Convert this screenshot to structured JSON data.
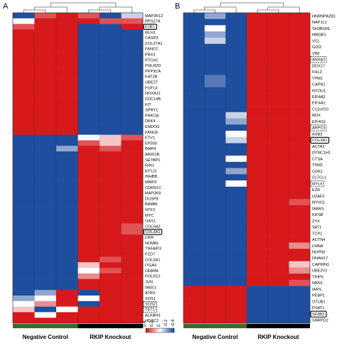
{
  "colors": {
    "high": "#d7191c",
    "mid": "#ffffff",
    "low": "#1f4e9e",
    "group_control": "#3d6b2a",
    "group_knockout": "#000000"
  },
  "legend": {
    "ticks": [
      "-0.4",
      "-0.2",
      "0",
      "0.2",
      "0.4"
    ]
  },
  "chart_data": [
    {
      "type": "heatmap",
      "panel": "A",
      "groups": [
        "Negative Control",
        "RKIP Knockout"
      ],
      "columns": 6,
      "genes": [
        "MAP3K12",
        "RPS27A",
        "E2B1",
        "MLH1",
        "CASP3",
        "COL27A1",
        "FANCC",
        "PBX3",
        "PTCH1",
        "POLR2D",
        "PPP3CA",
        "KAT2B",
        "UBE2T",
        "FGF14",
        "HOXA11",
        "CDC14B",
        "KIT",
        "SPRY1",
        "PRKCB",
        "DKK4",
        "ENDOG",
        "FANCE",
        "ETV1",
        "EP300",
        "BMP4",
        "ARID1B",
        "SETBP1",
        "RIN1",
        "KITLG",
        "INHBB",
        "MMP3",
        "CDKN1C",
        "MAP3K8",
        "DUSP8",
        "BAMBI",
        "NTF3",
        "MYC",
        "GAS1",
        "COL5A2",
        "COL3A1",
        "LIFR",
        "NUMBL",
        "TNFAIP3",
        "FZD7",
        "COL5A1",
        "ITGA3",
        "CEBPA",
        "POLR2J",
        "JUN",
        "WEE1",
        "ATRX",
        "SOS1",
        "SOS2",
        "TET1",
        "ALKBH3",
        "HDAC2"
      ],
      "highlighted": [
        "E2B1",
        "COL3A1"
      ],
      "dashed": [
        "SOS2",
        "TET1"
      ],
      "values": [
        [
          -0.4,
          0.3,
          0.4,
          0.3,
          -0.4,
          -0.1
        ],
        [
          0.0,
          0.4,
          0.4,
          0.4,
          0.3,
          0.3
        ],
        [
          0.3,
          0.4,
          0.4,
          -0.4,
          -0.4,
          0.4
        ],
        [
          0.4,
          0.4,
          0.4,
          -0.4,
          -0.4,
          -0.4
        ],
        [
          0.4,
          0.4,
          0.4,
          -0.4,
          -0.4,
          -0.4
        ],
        [
          0.4,
          0.4,
          0.4,
          -0.4,
          -0.4,
          -0.4
        ],
        [
          0.4,
          0.4,
          0.4,
          -0.4,
          -0.4,
          -0.4
        ],
        [
          0.4,
          0.4,
          0.4,
          -0.4,
          -0.4,
          -0.4
        ],
        [
          0.4,
          0.4,
          0.4,
          -0.4,
          -0.4,
          -0.4
        ],
        [
          0.4,
          0.4,
          0.4,
          -0.4,
          -0.4,
          -0.4
        ],
        [
          0.4,
          0.4,
          0.4,
          -0.4,
          -0.4,
          -0.4
        ],
        [
          0.4,
          0.4,
          0.4,
          -0.4,
          -0.4,
          -0.4
        ],
        [
          0.4,
          0.4,
          0.4,
          -0.4,
          -0.4,
          -0.4
        ],
        [
          0.4,
          0.4,
          0.4,
          -0.4,
          -0.4,
          -0.4
        ],
        [
          0.4,
          0.4,
          0.4,
          -0.4,
          -0.4,
          -0.4
        ],
        [
          0.4,
          0.4,
          0.4,
          -0.4,
          -0.4,
          -0.4
        ],
        [
          0.4,
          0.4,
          0.4,
          -0.4,
          -0.4,
          -0.4
        ],
        [
          0.4,
          0.4,
          0.4,
          -0.4,
          -0.4,
          -0.4
        ],
        [
          0.4,
          0.4,
          0.4,
          -0.4,
          -0.4,
          -0.4
        ],
        [
          0.4,
          0.4,
          0.4,
          -0.4,
          -0.4,
          -0.4
        ],
        [
          0.4,
          0.4,
          0.4,
          -0.4,
          -0.4,
          -0.4
        ],
        [
          0.4,
          0.4,
          0.4,
          -0.4,
          -0.4,
          -0.4
        ],
        [
          -0.4,
          -0.4,
          -0.4,
          0.0,
          0.1,
          0.3
        ],
        [
          -0.4,
          -0.4,
          -0.4,
          0.3,
          0.1,
          0.4
        ],
        [
          -0.4,
          -0.4,
          -0.2,
          0.4,
          0.3,
          0.4
        ],
        [
          -0.4,
          -0.4,
          -0.4,
          0.4,
          0.4,
          0.4
        ],
        [
          -0.4,
          -0.4,
          -0.4,
          0.4,
          0.4,
          0.4
        ],
        [
          -0.4,
          -0.4,
          -0.4,
          0.4,
          0.4,
          0.4
        ],
        [
          -0.4,
          -0.4,
          -0.4,
          0.4,
          0.4,
          0.4
        ],
        [
          -0.4,
          -0.4,
          -0.4,
          0.4,
          0.4,
          0.4
        ],
        [
          -0.4,
          -0.4,
          -0.4,
          0.4,
          0.4,
          0.4
        ],
        [
          -0.4,
          -0.4,
          -0.4,
          0.4,
          0.4,
          0.4
        ],
        [
          -0.4,
          -0.4,
          -0.4,
          0.4,
          0.4,
          0.4
        ],
        [
          -0.4,
          -0.4,
          -0.4,
          0.4,
          0.4,
          0.4
        ],
        [
          -0.4,
          -0.4,
          -0.4,
          0.4,
          0.4,
          0.4
        ],
        [
          -0.4,
          -0.4,
          -0.4,
          0.4,
          0.4,
          0.4
        ],
        [
          -0.4,
          -0.4,
          -0.4,
          0.4,
          0.4,
          0.4
        ],
        [
          -0.4,
          -0.4,
          -0.4,
          0.4,
          0.4,
          0.4
        ],
        [
          -0.4,
          -0.4,
          -0.4,
          0.4,
          0.4,
          0.3
        ],
        [
          -0.4,
          -0.4,
          -0.4,
          0.4,
          0.4,
          0.3
        ],
        [
          -0.4,
          -0.4,
          -0.4,
          0.4,
          0.4,
          0.4
        ],
        [
          -0.4,
          -0.4,
          -0.4,
          0.4,
          0.4,
          0.4
        ],
        [
          -0.4,
          -0.4,
          -0.4,
          0.4,
          0.4,
          0.4
        ],
        [
          -0.4,
          -0.4,
          -0.4,
          0.4,
          0.4,
          0.4
        ],
        [
          -0.4,
          -0.4,
          -0.4,
          0.4,
          0.3,
          0.4
        ],
        [
          -0.4,
          -0.4,
          -0.4,
          0.1,
          0.4,
          0.4
        ],
        [
          -0.4,
          -0.4,
          -0.4,
          0.0,
          0.3,
          0.4
        ],
        [
          -0.4,
          -0.4,
          -0.4,
          0.2,
          0.4,
          0.4
        ],
        [
          -0.4,
          -0.4,
          -0.4,
          0.4,
          0.4,
          0.4
        ],
        [
          -0.4,
          -0.4,
          -0.4,
          0.4,
          0.4,
          0.4
        ],
        [
          -0.4,
          -0.2,
          0.4,
          -0.4,
          0.4,
          0.4
        ],
        [
          -0.2,
          0.0,
          0.4,
          0.0,
          0.4,
          0.4
        ],
        [
          0.0,
          0.2,
          0.4,
          -0.4,
          0.4,
          0.4
        ],
        [
          0.1,
          -0.4,
          0.0,
          0.4,
          0.4,
          0.4
        ],
        [
          0.4,
          0.0,
          0.4,
          0.4,
          0.4,
          0.4
        ],
        [
          0.4,
          0.4,
          0.4,
          0.4,
          0.4,
          0.4
        ]
      ]
    },
    {
      "type": "heatmap",
      "panel": "B",
      "groups": [
        "Negative Control",
        "RKIP Knockout"
      ],
      "columns": 6,
      "genes": [
        "HNRNPA2B1",
        "NAP1L1",
        "SH3BGRL",
        "HMGB1",
        "VCL",
        "GDI2",
        "VIM",
        "ANXA2",
        "DDX17",
        "FHL2",
        "TPM1",
        "CAPN1",
        "HYOU1",
        "EIF4A2",
        "EIF4A1",
        "C12orf10",
        "RDX",
        "EIF4G1",
        "ARPC5",
        "ASB3",
        "COL3A1",
        "ACTA2",
        "DYNC1H1",
        "CTSA",
        "TPM2",
        "CDK1",
        "CLTCL1",
        "MYL6",
        "EZR",
        "U2AF2",
        "MYH11",
        "WARS",
        "KIF5B",
        "ZYX",
        "VAT1",
        "TCP1",
        "ACTN4",
        "LMNA",
        "NOP56",
        "DNAH17",
        "CAPRIN1",
        "UBE2V1",
        "TRIP6",
        "DBN1",
        "IARS",
        "PEBP1",
        "OTUB1",
        "PSAT1",
        "SF3B3",
        "SNRPD2"
      ],
      "highlighted": [
        "COL3A1",
        "SF3B3"
      ],
      "dashed": [
        "ANXA2",
        "ARPC5",
        "MYL6"
      ],
      "values": [
        [
          -0.4,
          -0.2,
          -0.4,
          0.4,
          0.4,
          0.4
        ],
        [
          -0.4,
          -0.4,
          -0.4,
          0.4,
          0.4,
          0.4
        ],
        [
          -0.4,
          0.0,
          -0.4,
          0.4,
          0.4,
          0.4
        ],
        [
          -0.4,
          -0.2,
          -0.4,
          0.4,
          0.4,
          0.4
        ],
        [
          -0.4,
          -0.1,
          -0.4,
          0.4,
          0.4,
          0.4
        ],
        [
          -0.4,
          -0.4,
          -0.4,
          0.4,
          0.4,
          0.4
        ],
        [
          -0.4,
          -0.4,
          -0.4,
          0.4,
          0.4,
          0.4
        ],
        [
          -0.4,
          -0.4,
          -0.4,
          0.4,
          0.4,
          0.4
        ],
        [
          -0.4,
          -0.4,
          -0.4,
          0.4,
          0.4,
          0.4
        ],
        [
          -0.4,
          -0.4,
          -0.4,
          0.4,
          0.4,
          0.4
        ],
        [
          -0.4,
          -0.3,
          -0.4,
          0.4,
          0.4,
          0.4
        ],
        [
          -0.4,
          -0.3,
          -0.4,
          0.4,
          0.4,
          0.4
        ],
        [
          -0.4,
          -0.4,
          -0.4,
          0.4,
          0.4,
          0.4
        ],
        [
          -0.4,
          -0.4,
          -0.4,
          0.4,
          0.4,
          0.4
        ],
        [
          -0.4,
          -0.4,
          -0.4,
          0.4,
          0.4,
          0.4
        ],
        [
          -0.4,
          -0.4,
          -0.4,
          0.4,
          0.4,
          0.4
        ],
        [
          -0.4,
          -0.4,
          -0.1,
          0.4,
          0.4,
          0.4
        ],
        [
          -0.4,
          -0.4,
          -0.2,
          0.4,
          0.4,
          0.4
        ],
        [
          -0.4,
          -0.4,
          -0.4,
          0.4,
          0.4,
          0.4
        ],
        [
          -0.4,
          -0.4,
          0.0,
          0.4,
          0.4,
          0.4
        ],
        [
          -0.4,
          -0.4,
          -0.1,
          0.4,
          0.4,
          0.4
        ],
        [
          -0.4,
          -0.4,
          -0.4,
          0.4,
          0.4,
          0.4
        ],
        [
          -0.4,
          -0.4,
          -0.4,
          0.4,
          0.4,
          0.4
        ],
        [
          -0.4,
          -0.4,
          0.0,
          0.4,
          0.4,
          0.4
        ],
        [
          -0.4,
          -0.4,
          -0.4,
          0.4,
          0.4,
          0.4
        ],
        [
          -0.4,
          -0.4,
          -0.2,
          0.4,
          0.4,
          0.4
        ],
        [
          -0.4,
          -0.4,
          -0.4,
          0.4,
          0.4,
          0.4
        ],
        [
          -0.4,
          -0.4,
          0.0,
          0.4,
          0.4,
          0.4
        ],
        [
          -0.4,
          -0.4,
          -0.4,
          0.4,
          0.4,
          0.4
        ],
        [
          -0.4,
          -0.4,
          -0.4,
          0.4,
          0.4,
          0.4
        ],
        [
          -0.4,
          -0.4,
          -0.4,
          0.4,
          0.4,
          0.3
        ],
        [
          -0.4,
          -0.4,
          -0.4,
          0.4,
          0.4,
          0.4
        ],
        [
          -0.4,
          -0.4,
          -0.4,
          0.4,
          0.4,
          0.4
        ],
        [
          -0.4,
          -0.4,
          -0.4,
          0.4,
          0.4,
          0.4
        ],
        [
          -0.4,
          -0.4,
          -0.4,
          0.4,
          0.4,
          0.4
        ],
        [
          -0.4,
          -0.4,
          -0.4,
          0.4,
          0.4,
          0.4
        ],
        [
          -0.4,
          -0.4,
          -0.4,
          0.4,
          0.4,
          0.4
        ],
        [
          -0.4,
          -0.4,
          -0.4,
          0.4,
          0.4,
          0.2
        ],
        [
          -0.4,
          -0.4,
          -0.4,
          0.4,
          0.4,
          0.4
        ],
        [
          -0.4,
          -0.4,
          -0.4,
          0.4,
          0.4,
          0.4
        ],
        [
          -0.4,
          -0.4,
          -0.4,
          0.4,
          0.4,
          0.1
        ],
        [
          -0.4,
          -0.4,
          -0.4,
          0.4,
          0.4,
          0.2
        ],
        [
          -0.4,
          -0.4,
          -0.4,
          0.4,
          0.4,
          0.4
        ],
        [
          -0.4,
          -0.4,
          -0.4,
          0.4,
          0.4,
          0.3
        ],
        [
          0.4,
          0.4,
          0.4,
          -0.4,
          -0.4,
          -0.4
        ],
        [
          0.4,
          0.4,
          0.4,
          -0.4,
          -0.4,
          -0.4
        ],
        [
          0.4,
          0.4,
          0.4,
          -0.4,
          -0.4,
          -0.4
        ],
        [
          0.4,
          0.4,
          0.4,
          -0.4,
          -0.4,
          -0.4
        ],
        [
          0.4,
          0.4,
          0.4,
          -0.4,
          -0.4,
          -0.4
        ],
        [
          0.4,
          0.4,
          0.4,
          -0.4,
          -0.4,
          -0.4
        ]
      ]
    }
  ]
}
